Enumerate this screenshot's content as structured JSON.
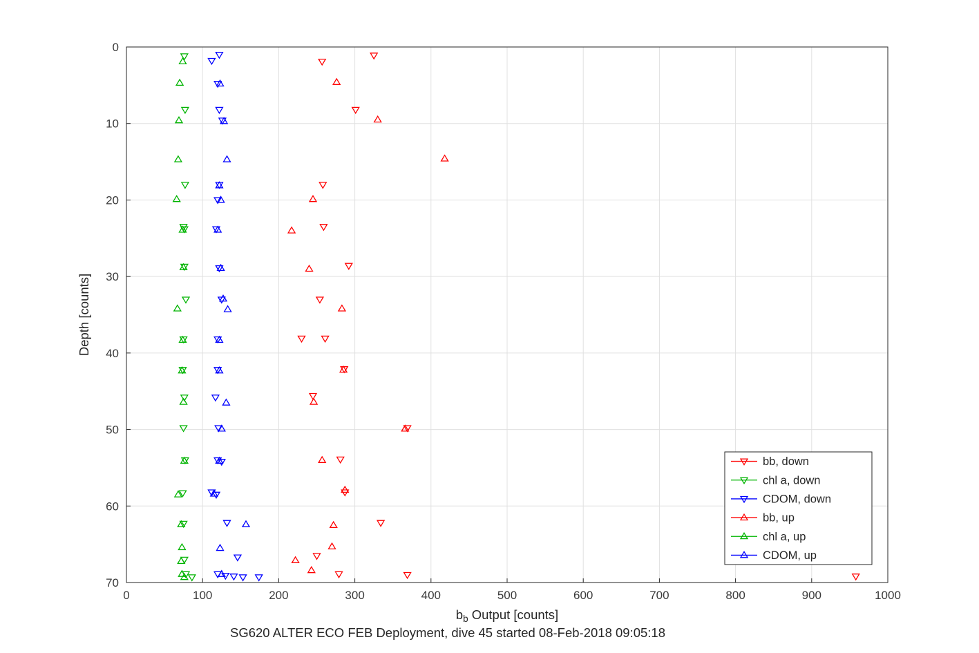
{
  "figure": {
    "background": "#ffffff"
  },
  "chart_data": {
    "type": "scatter",
    "title": "SG620 ALTER ECO FEB Deployment, dive 45 started 08-Feb-2018 09:05:18",
    "xlabel": "b_b Output [counts]",
    "xlabel_parts": {
      "base": "b",
      "sub": "b",
      "rest": " Output [counts]"
    },
    "ylabel": "Depth [counts]",
    "xlim": [
      0,
      1000
    ],
    "ylim": [
      0,
      70
    ],
    "y_axis_inverted": true,
    "xticks": [
      0,
      100,
      200,
      300,
      400,
      500,
      600,
      700,
      800,
      900,
      1000
    ],
    "yticks": [
      0,
      10,
      20,
      30,
      40,
      50,
      60,
      70
    ],
    "grid": true,
    "legend_position": "lower-right-inside",
    "colors": {
      "red": "#ff0000",
      "green": "#00b400",
      "blue": "#0000ff"
    },
    "series": [
      {
        "id": "bb-down",
        "name": "bb, down",
        "color": "#ff0000",
        "marker": "down",
        "points": [
          [
            325,
            1.1
          ],
          [
            257,
            1.9
          ],
          [
            301,
            8.2
          ],
          [
            258,
            18.0
          ],
          [
            259,
            23.5
          ],
          [
            292,
            28.6
          ],
          [
            254,
            33.0
          ],
          [
            230,
            38.1
          ],
          [
            261,
            38.1
          ],
          [
            286,
            42.1
          ],
          [
            245,
            45.6
          ],
          [
            369,
            49.8
          ],
          [
            281,
            53.9
          ],
          [
            287,
            58.2
          ],
          [
            334,
            62.2
          ],
          [
            250,
            66.5
          ],
          [
            279,
            68.9
          ],
          [
            369,
            69.0
          ],
          [
            958,
            69.2
          ]
        ]
      },
      {
        "id": "chla-down",
        "name": "chl a, down",
        "color": "#00b400",
        "marker": "down",
        "points": [
          [
            76,
            1.2
          ],
          [
            77,
            8.2
          ],
          [
            77,
            18.0
          ],
          [
            75,
            23.5
          ],
          [
            76,
            23.8
          ],
          [
            76,
            28.7
          ],
          [
            78,
            33.0
          ],
          [
            75,
            38.2
          ],
          [
            74,
            42.2
          ],
          [
            76,
            45.8
          ],
          [
            75,
            49.8
          ],
          [
            77,
            54.0
          ],
          [
            74,
            58.3
          ],
          [
            75,
            62.3
          ],
          [
            76,
            67.0
          ],
          [
            78,
            68.9
          ],
          [
            86,
            69.3
          ]
        ]
      },
      {
        "id": "cdom-down",
        "name": "CDOM, down",
        "color": "#0000ff",
        "marker": "down",
        "points": [
          [
            122,
            1.0
          ],
          [
            112,
            1.8
          ],
          [
            120,
            4.8
          ],
          [
            122,
            8.2
          ],
          [
            126,
            9.6
          ],
          [
            122,
            18.0
          ],
          [
            120,
            20.0
          ],
          [
            118,
            23.8
          ],
          [
            122,
            28.9
          ],
          [
            125,
            33.0
          ],
          [
            120,
            38.2
          ],
          [
            120,
            42.2
          ],
          [
            117,
            45.8
          ],
          [
            121,
            49.8
          ],
          [
            120,
            54.0
          ],
          [
            125,
            54.2
          ],
          [
            112,
            58.2
          ],
          [
            118,
            58.5
          ],
          [
            132,
            62.2
          ],
          [
            146,
            66.7
          ],
          [
            120,
            68.9
          ],
          [
            130,
            69.1
          ],
          [
            141,
            69.2
          ],
          [
            153,
            69.3
          ],
          [
            174,
            69.3
          ]
        ]
      },
      {
        "id": "bb-up",
        "name": "bb, up",
        "color": "#ff0000",
        "marker": "up",
        "points": [
          [
            276,
            4.6
          ],
          [
            330,
            9.5
          ],
          [
            418,
            14.6
          ],
          [
            245,
            19.9
          ],
          [
            217,
            24.0
          ],
          [
            240,
            29.0
          ],
          [
            283,
            34.2
          ],
          [
            285,
            42.2
          ],
          [
            246,
            46.4
          ],
          [
            366,
            49.9
          ],
          [
            257,
            54.0
          ],
          [
            287,
            57.9
          ],
          [
            272,
            62.5
          ],
          [
            270,
            65.3
          ],
          [
            222,
            67.1
          ],
          [
            243,
            68.4
          ]
        ]
      },
      {
        "id": "chla-up",
        "name": "chl a, up",
        "color": "#00b400",
        "marker": "up",
        "points": [
          [
            74,
            1.9
          ],
          [
            70,
            4.7
          ],
          [
            69,
            9.6
          ],
          [
            68,
            14.7
          ],
          [
            66,
            19.9
          ],
          [
            74,
            23.9
          ],
          [
            75,
            28.8
          ],
          [
            67,
            34.2
          ],
          [
            74,
            38.3
          ],
          [
            73,
            42.3
          ],
          [
            75,
            46.4
          ],
          [
            76,
            54.1
          ],
          [
            68,
            58.5
          ],
          [
            72,
            62.4
          ],
          [
            73,
            65.4
          ],
          [
            72,
            67.2
          ],
          [
            73,
            68.9
          ],
          [
            76,
            69.3
          ]
        ]
      },
      {
        "id": "cdom-up",
        "name": "CDOM, up",
        "color": "#0000ff",
        "marker": "up",
        "points": [
          [
            123,
            4.8
          ],
          [
            128,
            9.7
          ],
          [
            132,
            14.7
          ],
          [
            122,
            18.1
          ],
          [
            124,
            20.0
          ],
          [
            120,
            23.9
          ],
          [
            124,
            28.9
          ],
          [
            127,
            32.9
          ],
          [
            133,
            34.3
          ],
          [
            122,
            38.3
          ],
          [
            122,
            42.3
          ],
          [
            131,
            46.5
          ],
          [
            125,
            49.9
          ],
          [
            122,
            54.1
          ],
          [
            115,
            58.4
          ],
          [
            157,
            62.4
          ],
          [
            123,
            65.5
          ],
          [
            125,
            68.9
          ]
        ]
      }
    ]
  }
}
